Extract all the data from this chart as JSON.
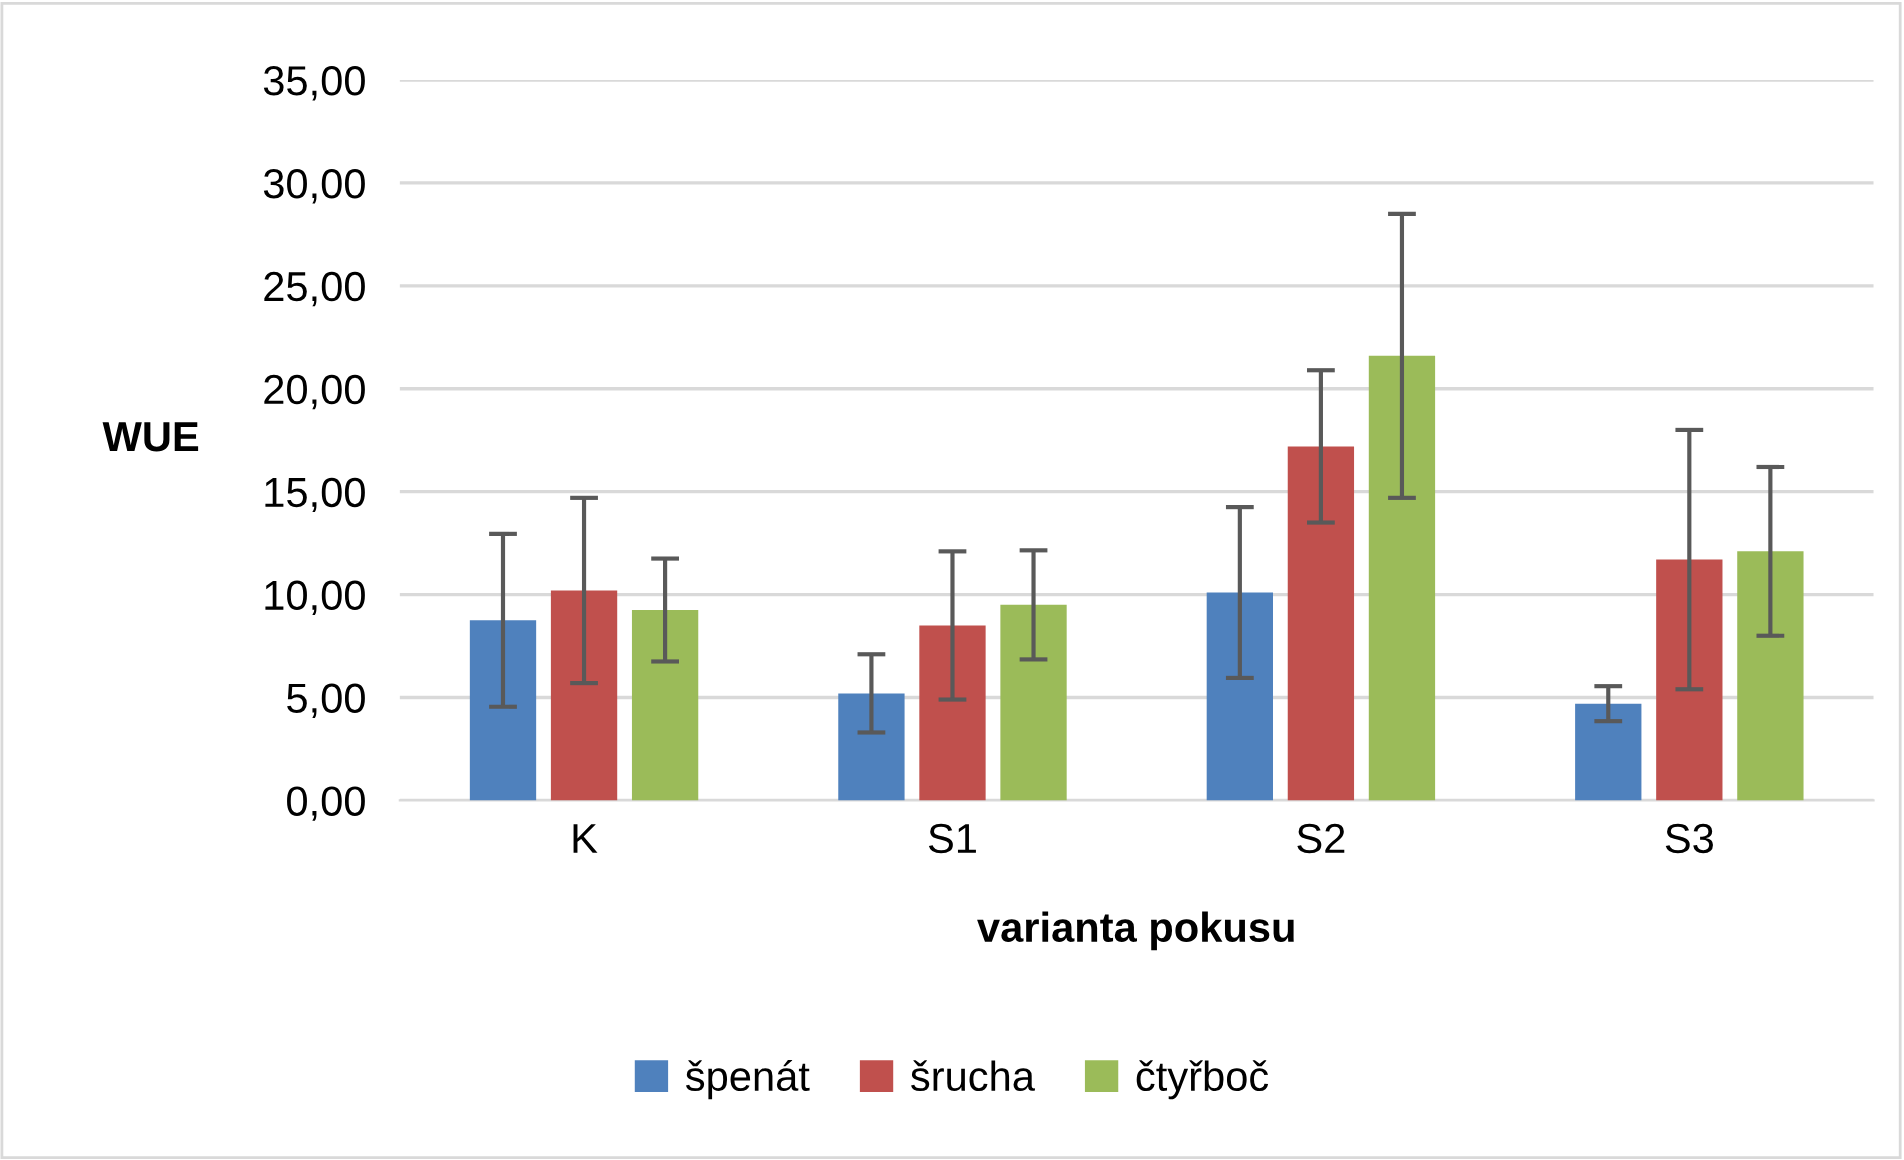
{
  "chart_data": {
    "type": "bar",
    "ylabel": "WUE",
    "xlabel": "varianta pokusu",
    "categories": [
      "K",
      "S1",
      "S2",
      "S3"
    ],
    "series": [
      {
        "name": "špenát",
        "color": "#4f81bd",
        "values": [
          8.75,
          5.2,
          10.1,
          4.7
        ],
        "errors": [
          4.2,
          1.9,
          4.15,
          0.85
        ]
      },
      {
        "name": "šrucha",
        "color": "#c0504d",
        "values": [
          10.2,
          8.5,
          17.2,
          11.7
        ],
        "errors": [
          4.5,
          3.6,
          3.7,
          6.3
        ]
      },
      {
        "name": "čtyřboč",
        "color": "#9bbb59",
        "values": [
          9.25,
          9.5,
          21.6,
          12.1
        ],
        "errors": [
          2.5,
          2.65,
          6.9,
          4.1
        ]
      }
    ],
    "ylim": [
      0,
      35
    ],
    "yticks": [
      {
        "value": 0,
        "label": "0,00"
      },
      {
        "value": 5,
        "label": "5,00"
      },
      {
        "value": 10,
        "label": "10,00"
      },
      {
        "value": 15,
        "label": "15,00"
      },
      {
        "value": 20,
        "label": "20,00"
      },
      {
        "value": 25,
        "label": "25,00"
      },
      {
        "value": 30,
        "label": "30,00"
      },
      {
        "value": 35,
        "label": "35,00"
      }
    ],
    "grid": "y",
    "legend": "bottom"
  }
}
